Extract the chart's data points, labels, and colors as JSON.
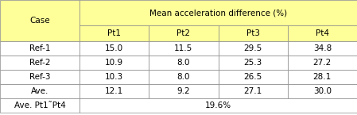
{
  "title": "Mean acceleration difference (%)",
  "col_header": [
    "Pt1",
    "Pt2",
    "Pt3",
    "Pt4"
  ],
  "data_labels": [
    "Ref-1",
    "Ref-2",
    "Ref-3",
    "Ave."
  ],
  "rows": [
    [
      "15.0",
      "11.5",
      "29.5",
      "34.8"
    ],
    [
      "10.9",
      "8.0",
      "25.3",
      "27.2"
    ],
    [
      "10.3",
      "8.0",
      "26.5",
      "28.1"
    ],
    [
      "12.1",
      "9.2",
      "27.1",
      "30.0"
    ]
  ],
  "bottom_label": "Ave. Pt1˜Pt4",
  "bottom_value": "19.6%",
  "header_bg": "#ffff99",
  "cell_bg": "#ffffff",
  "border_color": "#888888",
  "font_size": 7.5,
  "fig_width": 4.49,
  "fig_height": 1.45,
  "dpi": 100
}
